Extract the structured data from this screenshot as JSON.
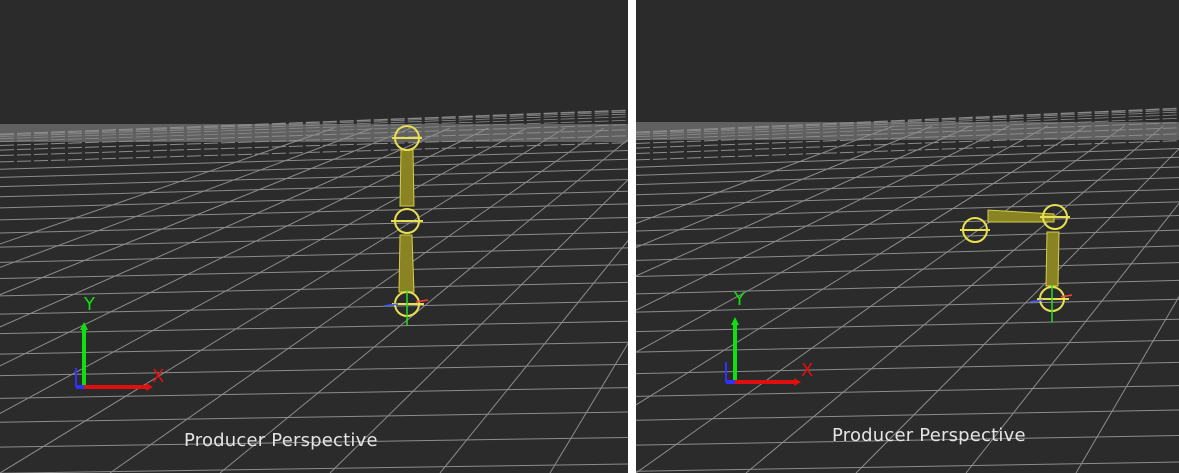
{
  "viewports": [
    {
      "id": "left",
      "camera_label": "Producer Perspective",
      "axis_labels": {
        "x": "X",
        "y": "Y",
        "z": "Z"
      }
    },
    {
      "id": "right",
      "camera_label": "Producer Perspective",
      "axis_labels": {
        "x": "X",
        "y": "Y",
        "z": "Z"
      }
    }
  ],
  "colors": {
    "background": "#2b2b2b",
    "grid": "#8c8c8c",
    "divider": "#ffffff",
    "bone": "#d6cc4a",
    "bone_dark": "#8a8324",
    "axis_x": "#e01010",
    "axis_y": "#10e010",
    "axis_z": "#3030ff"
  },
  "icons": [
    "axis-gizmo-icon",
    "bone-joint-icon",
    "bone-link-icon"
  ]
}
